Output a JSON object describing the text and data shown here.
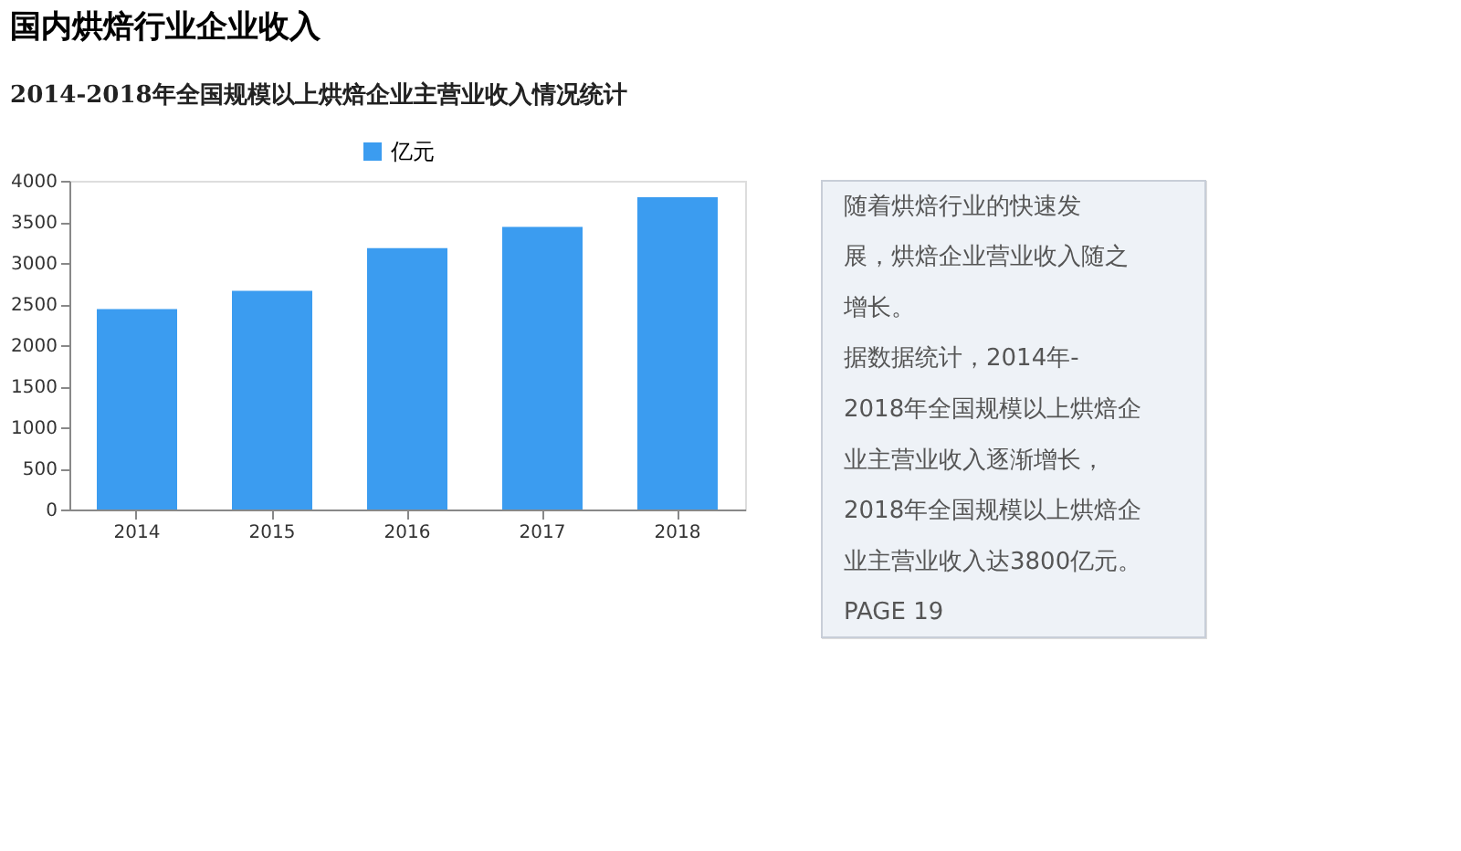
{
  "chart_data": [
    {
      "type": "bar",
      "title": "国内烘焙行业企业收入",
      "subtitle": "2014-2018年全国规模以上烘焙企业主营业收入情况统计",
      "categories": [
        "2014",
        "2015",
        "2016",
        "2017",
        "2018"
      ],
      "series": [
        {
          "name": "亿元",
          "color": "#3b9cf0",
          "values": [
            2440,
            2660,
            3180,
            3440,
            3800
          ]
        }
      ],
      "ylim": [
        0,
        4000
      ],
      "yticks": [
        0,
        500,
        1000,
        1500,
        2000,
        2500,
        3000,
        3500,
        4000
      ],
      "grid": false,
      "legend": "top"
    },
    {
      "type": "other",
      "annotations": [
        "随着烘焙行业的快速发",
        "展，烘焙企业营业收入随之",
        "增长。",
        "据数据统计，2014年-",
        "2018年全国规模以上烘焙企",
        "业主营业收入逐渐增长，",
        "2018年全国规模以上烘焙企",
        "业主营业收入达3800亿元。",
        "PAGE 19"
      ]
    }
  ]
}
